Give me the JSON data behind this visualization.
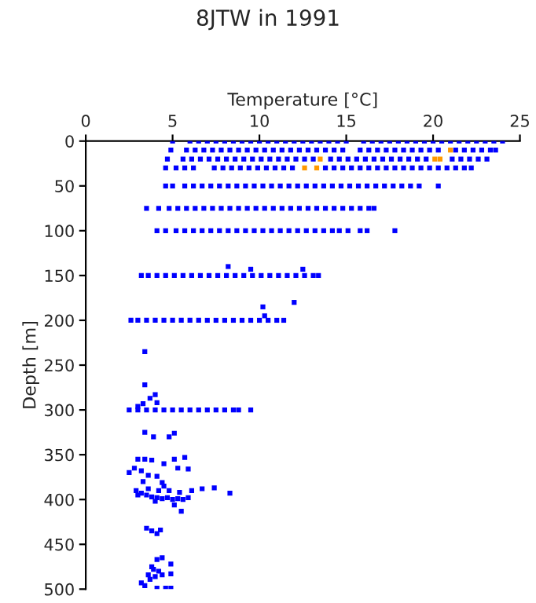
{
  "chart_data": {
    "type": "scatter",
    "title": "8JTW in 1991",
    "xlabel": "Temperature [°C]",
    "ylabel": "Depth [m]",
    "xlim": [
      0,
      25
    ],
    "xticks": [
      0,
      5,
      10,
      15,
      20,
      25
    ],
    "ylim": [
      500,
      0
    ],
    "yticks": [
      0,
      50,
      100,
      150,
      200,
      250,
      300,
      350,
      400,
      450,
      500
    ],
    "marker": "square",
    "grid": false,
    "legend": false,
    "series": [
      {
        "color": "#0000ff",
        "x": [
          5.0,
          6.0,
          6.5,
          7.0,
          7.5,
          8.0,
          8.5,
          9.0,
          9.5,
          10.0,
          10.5,
          11.0,
          11.5,
          12.0,
          12.5,
          13.0,
          13.5,
          14.0,
          14.5,
          15.0,
          16.0,
          16.5,
          17.0,
          17.5,
          18.0,
          18.5,
          19.0,
          19.5,
          20.0,
          20.5,
          21.0,
          21.5,
          22.0,
          22.5,
          23.0,
          23.5,
          24.0
        ],
        "values": [
          0,
          0,
          0,
          0,
          0,
          0,
          0,
          0,
          0,
          0,
          0,
          0,
          0,
          0,
          0,
          0,
          0,
          0,
          0,
          0,
          0,
          0,
          0,
          0,
          0,
          0,
          0,
          0,
          0,
          0,
          0,
          0,
          0,
          0,
          0,
          0,
          0
        ]
      },
      {
        "color": "#0000ff",
        "x": [
          4.9,
          5.8,
          6.3,
          6.8,
          7.3,
          7.8,
          8.3,
          8.8,
          9.3,
          9.8,
          10.3,
          10.8,
          11.3,
          11.8,
          12.3,
          12.8,
          13.3,
          13.8,
          14.3,
          14.8,
          15.8,
          16.3,
          16.8,
          17.3,
          17.8,
          18.3,
          18.8,
          19.3,
          19.8,
          20.3,
          21.3,
          21.8,
          22.3,
          22.8,
          23.3,
          23.6
        ],
        "values": [
          10,
          10,
          10,
          10,
          10,
          10,
          10,
          10,
          10,
          10,
          10,
          10,
          10,
          10,
          10,
          10,
          10,
          10,
          10,
          10,
          10,
          10,
          10,
          10,
          10,
          10,
          10,
          10,
          10,
          10,
          10,
          10,
          10,
          10,
          10,
          10
        ]
      },
      {
        "color": "#0000ff",
        "x": [
          4.7,
          5.6,
          6.1,
          6.6,
          7.1,
          7.6,
          8.1,
          8.6,
          9.1,
          9.6,
          10.1,
          10.6,
          11.1,
          11.6,
          12.1,
          12.6,
          13.1,
          14.1,
          14.6,
          15.1,
          15.6,
          16.1,
          16.6,
          17.1,
          17.6,
          18.1,
          18.6,
          19.1,
          19.6,
          21.1,
          21.6,
          22.1,
          22.6,
          23.1
        ],
        "values": [
          20,
          20,
          20,
          20,
          20,
          20,
          20,
          20,
          20,
          20,
          20,
          20,
          20,
          20,
          20,
          20,
          20,
          20,
          20,
          20,
          20,
          20,
          20,
          20,
          20,
          20,
          20,
          20,
          20,
          20,
          20,
          20,
          20,
          20
        ]
      },
      {
        "color": "#0000ff",
        "x": [
          4.6,
          5.2,
          5.7,
          6.2,
          7.4,
          7.9,
          8.4,
          8.9,
          9.4,
          9.9,
          10.4,
          10.9,
          11.4,
          11.9,
          13.8,
          14.3,
          14.8,
          15.3,
          15.8,
          16.3,
          16.8,
          17.3,
          17.8,
          18.3,
          18.8,
          19.3,
          19.8,
          20.3,
          20.8,
          21.3,
          21.8,
          22.2
        ],
        "values": [
          30,
          30,
          30,
          30,
          30,
          30,
          30,
          30,
          30,
          30,
          30,
          30,
          30,
          30,
          30,
          30,
          30,
          30,
          30,
          30,
          30,
          30,
          30,
          30,
          30,
          30,
          30,
          30,
          30,
          30,
          30,
          30
        ]
      },
      {
        "color": "#0000ff",
        "x": [
          4.6,
          5.0,
          5.7,
          6.2,
          6.7,
          7.2,
          7.7,
          8.2,
          8.7,
          9.2,
          9.7,
          10.2,
          10.7,
          11.2,
          11.7,
          12.2,
          12.7,
          13.2,
          13.7,
          14.2,
          14.7,
          15.2,
          15.7,
          16.2,
          16.7,
          17.2,
          17.7,
          18.2,
          18.7,
          19.2,
          20.3
        ],
        "values": [
          50,
          50,
          50,
          50,
          50,
          50,
          50,
          50,
          50,
          50,
          50,
          50,
          50,
          50,
          50,
          50,
          50,
          50,
          50,
          50,
          50,
          50,
          50,
          50,
          50,
          50,
          50,
          50,
          50,
          50,
          50
        ]
      },
      {
        "color": "#0000ff",
        "x": [
          3.5,
          4.2,
          4.8,
          5.3,
          5.8,
          6.3,
          6.8,
          7.3,
          7.8,
          8.3,
          8.8,
          9.3,
          9.8,
          10.3,
          10.8,
          11.3,
          11.8,
          12.3,
          12.8,
          13.3,
          13.8,
          14.3,
          14.8,
          15.3,
          15.8,
          16.3,
          16.6
        ],
        "values": [
          75,
          75,
          75,
          75,
          75,
          75,
          75,
          75,
          75,
          75,
          75,
          75,
          75,
          75,
          75,
          75,
          75,
          75,
          75,
          75,
          75,
          75,
          75,
          75,
          75,
          75,
          75
        ]
      },
      {
        "color": "#0000ff",
        "x": [
          4.1,
          4.6,
          5.2,
          5.7,
          6.2,
          6.7,
          7.2,
          7.7,
          8.2,
          8.7,
          9.2,
          9.7,
          10.2,
          10.7,
          11.2,
          11.7,
          12.2,
          12.7,
          13.2,
          13.7,
          14.2,
          14.6,
          15.1,
          15.8,
          16.2,
          17.8
        ],
        "values": [
          100,
          100,
          100,
          100,
          100,
          100,
          100,
          100,
          100,
          100,
          100,
          100,
          100,
          100,
          100,
          100,
          100,
          100,
          100,
          100,
          100,
          100,
          100,
          100,
          100,
          100
        ]
      },
      {
        "color": "#0000ff",
        "x": [
          3.2,
          3.6,
          4.1,
          4.6,
          5.1,
          5.6,
          6.1,
          6.6,
          7.1,
          7.6,
          8.1,
          8.6,
          9.1,
          9.6,
          10.1,
          10.6,
          11.1,
          11.6,
          12.1,
          12.6,
          13.1,
          13.4
        ],
        "values": [
          150,
          150,
          150,
          150,
          150,
          150,
          150,
          150,
          150,
          150,
          150,
          150,
          150,
          150,
          150,
          150,
          150,
          150,
          150,
          150,
          150,
          150
        ]
      },
      {
        "color": "#0000ff",
        "x": [
          2.6,
          3.0,
          3.5,
          4.0,
          4.5,
          5.0,
          5.5,
          6.0,
          6.5,
          7.0,
          7.5,
          8.0,
          8.5,
          9.0,
          9.5,
          10.0,
          10.5,
          11.0,
          11.4
        ],
        "values": [
          200,
          200,
          200,
          200,
          200,
          200,
          200,
          200,
          200,
          200,
          200,
          200,
          200,
          200,
          200,
          200,
          200,
          200,
          200
        ]
      },
      {
        "color": "#0000ff",
        "x": [
          2.5,
          3.0,
          3.5,
          4.0,
          4.5,
          5.0,
          5.5,
          6.0,
          6.5,
          7.0,
          7.5,
          8.0,
          8.5,
          8.8,
          9.5
        ],
        "values": [
          300,
          300,
          300,
          300,
          300,
          300,
          300,
          300,
          300,
          300,
          300,
          300,
          300,
          300,
          300
        ]
      },
      {
        "color": "#0000ff",
        "x": [
          8.2,
          9.5,
          12.5,
          10.2,
          12.0,
          10.3,
          3.4,
          3.4,
          4.0,
          3.7,
          3.3,
          3.0,
          4.1,
          3.4,
          3.9,
          5.1,
          4.8,
          2.5,
          2.8,
          3.0,
          3.4,
          3.8,
          3.2,
          3.6,
          4.1,
          4.5,
          5.1,
          5.3,
          5.7,
          5.9,
          4.4,
          3.3,
          2.9,
          3.2,
          3.5,
          3.8,
          4.1,
          4.4,
          4.7,
          5.0,
          5.3,
          5.6,
          5.9,
          3.0,
          3.6,
          4.2,
          4.8,
          5.4,
          6.1,
          6.7,
          7.4,
          8.3,
          5.1,
          5.5,
          4.0,
          4.5,
          3.5,
          3.8,
          4.1,
          4.3,
          3.2,
          3.4,
          3.7,
          4.0,
          4.2,
          4.4,
          3.8,
          4.1,
          4.4,
          4.9,
          4.9,
          4.1,
          4.6,
          4.9,
          3.6,
          3.9
        ],
        "values": [
          140,
          143,
          143,
          185,
          180,
          195,
          235,
          272,
          283,
          287,
          293,
          296,
          292,
          325,
          330,
          326,
          330,
          370,
          365,
          355,
          355,
          356,
          368,
          373,
          374,
          360,
          355,
          365,
          353,
          366,
          381,
          380,
          390,
          393,
          395,
          397,
          398,
          399,
          398,
          400,
          399,
          400,
          398,
          395,
          388,
          390,
          390,
          392,
          390,
          388,
          387,
          393,
          406,
          413,
          402,
          385,
          432,
          435,
          438,
          434,
          493,
          496,
          489,
          486,
          480,
          484,
          475,
          467,
          465,
          472,
          483,
          499,
          499,
          499,
          484,
          478
        ]
      },
      {
        "color": "#ff9900",
        "x": [
          21.0,
          13.5,
          20.1,
          20.4,
          12.6,
          13.3
        ],
        "values": [
          10,
          20,
          20,
          20,
          30,
          30
        ]
      }
    ]
  }
}
